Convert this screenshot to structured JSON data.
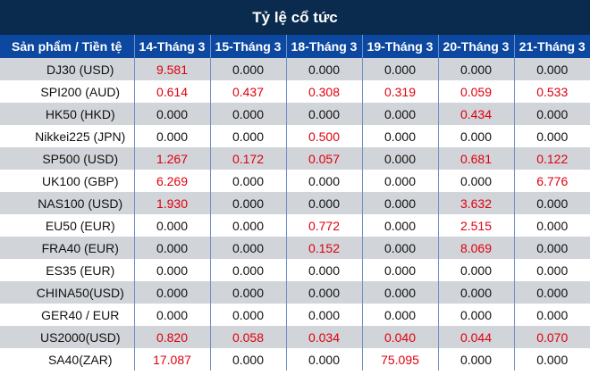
{
  "title": "Tỷ lệ cổ tức",
  "colors": {
    "title_bg": "#0a2b4d",
    "header_bg": "#0c48a0",
    "row_alt_bg": "#d1d4d9",
    "positive_value": "#e0000e"
  },
  "table": {
    "product_header": "Sản phẩm / Tiền tệ",
    "date_headers": [
      "14-Tháng 3",
      "15-Tháng 3",
      "18-Tháng 3",
      "19-Tháng 3",
      "20-Tháng 3",
      "21-Tháng 3"
    ],
    "rows": [
      {
        "product": "DJ30 (USD)",
        "values": [
          "9.581",
          "0.000",
          "0.000",
          "0.000",
          "0.000",
          "0.000"
        ]
      },
      {
        "product": "SPI200 (AUD)",
        "values": [
          "0.614",
          "0.437",
          "0.308",
          "0.319",
          "0.059",
          "0.533"
        ]
      },
      {
        "product": "HK50 (HKD)",
        "values": [
          "0.000",
          "0.000",
          "0.000",
          "0.000",
          "0.434",
          "0.000"
        ]
      },
      {
        "product": "Nikkei225 (JPN)",
        "values": [
          "0.000",
          "0.000",
          "0.500",
          "0.000",
          "0.000",
          "0.000"
        ]
      },
      {
        "product": "SP500 (USD)",
        "values": [
          "1.267",
          "0.172",
          "0.057",
          "0.000",
          "0.681",
          "0.122"
        ]
      },
      {
        "product": "UK100 (GBP)",
        "values": [
          "6.269",
          "0.000",
          "0.000",
          "0.000",
          "0.000",
          "6.776"
        ]
      },
      {
        "product": "NAS100 (USD)",
        "values": [
          "1.930",
          "0.000",
          "0.000",
          "0.000",
          "3.632",
          "0.000"
        ]
      },
      {
        "product": "EU50 (EUR)",
        "values": [
          "0.000",
          "0.000",
          "0.772",
          "0.000",
          "2.515",
          "0.000"
        ]
      },
      {
        "product": "FRA40 (EUR)",
        "values": [
          "0.000",
          "0.000",
          "0.152",
          "0.000",
          "8.069",
          "0.000"
        ]
      },
      {
        "product": "ES35 (EUR)",
        "values": [
          "0.000",
          "0.000",
          "0.000",
          "0.000",
          "0.000",
          "0.000"
        ]
      },
      {
        "product": "CHINA50(USD)",
        "values": [
          "0.000",
          "0.000",
          "0.000",
          "0.000",
          "0.000",
          "0.000"
        ]
      },
      {
        "product": "GER40 / EUR",
        "values": [
          "0.000",
          "0.000",
          "0.000",
          "0.000",
          "0.000",
          "0.000"
        ]
      },
      {
        "product": "US2000(USD)",
        "values": [
          "0.820",
          "0.058",
          "0.034",
          "0.040",
          "0.044",
          "0.070"
        ]
      },
      {
        "product": "SA40(ZAR)",
        "values": [
          "17.087",
          "0.000",
          "0.000",
          "75.095",
          "0.000",
          "0.000"
        ]
      }
    ]
  }
}
